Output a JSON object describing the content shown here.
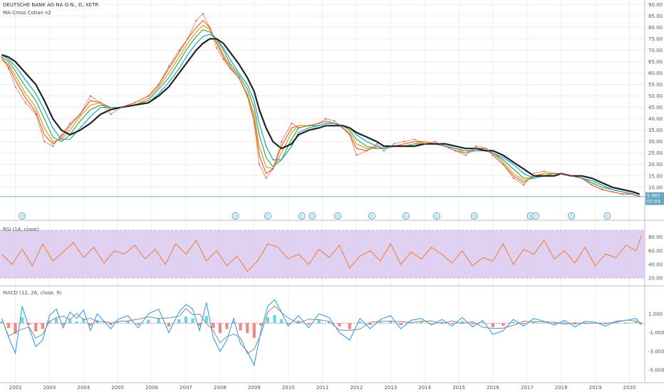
{
  "chart_data": {
    "type": "line",
    "title": "DEUTSCHE BANK AG NA O.N., D, XETR",
    "subtitle": "MA-Cross Coban v2",
    "price_ticks": [
      "90.00",
      "85.00",
      "80.00",
      "75.00",
      "70.00",
      "65.00",
      "60.00",
      "55.00",
      "50.00",
      "45.00",
      "40.00",
      "35.00",
      "30.00",
      "25.00",
      "20.00",
      "15.00",
      "10.00"
    ],
    "price_range": [
      4,
      92
    ],
    "last_price_label": "5.967",
    "last_time_label": "07:04",
    "x_labels": [
      "2002",
      "2003",
      "2004",
      "2005",
      "2006",
      "2007",
      "2008",
      "2009",
      "2010",
      "2011",
      "2012",
      "2013",
      "2014",
      "2015",
      "2016",
      "2017",
      "2018",
      "2019",
      "2020"
    ],
    "x_range": [
      2001.55,
      2020.45
    ],
    "price_series": {
      "name": "close",
      "x": [
        2001.6,
        2001.8,
        2002.0,
        2002.3,
        2002.6,
        2002.85,
        2003.1,
        2003.35,
        2003.6,
        2003.9,
        2004.2,
        2004.5,
        2004.8,
        2005.1,
        2005.5,
        2005.9,
        2006.2,
        2006.5,
        2006.8,
        2007.05,
        2007.3,
        2007.5,
        2007.7,
        2007.9,
        2008.1,
        2008.3,
        2008.55,
        2008.8,
        2009.0,
        2009.15,
        2009.35,
        2009.55,
        2009.8,
        2010.1,
        2010.3,
        2010.6,
        2010.9,
        2011.1,
        2011.35,
        2011.6,
        2011.8,
        2012.0,
        2012.3,
        2012.6,
        2012.8,
        2013.1,
        2013.4,
        2013.7,
        2014.0,
        2014.3,
        2014.6,
        2014.9,
        2015.2,
        2015.5,
        2015.8,
        2016.0,
        2016.3,
        2016.6,
        2016.9,
        2017.2,
        2017.5,
        2017.8,
        2018.0,
        2018.3,
        2018.6,
        2018.9,
        2019.2,
        2019.5,
        2019.8,
        2020.1,
        2020.3
      ],
      "y": [
        67,
        62,
        54,
        47,
        42,
        30,
        28,
        33,
        38,
        42,
        50,
        47,
        42,
        45,
        47,
        50,
        55,
        63,
        70,
        75,
        83,
        86,
        80,
        71,
        66,
        62,
        58,
        50,
        38,
        20,
        14,
        18,
        30,
        38,
        36,
        37,
        38,
        40,
        39,
        36,
        33,
        24,
        26,
        29,
        26,
        29,
        30,
        31,
        29,
        30,
        28,
        26,
        24,
        28,
        27,
        24,
        20,
        14,
        11,
        16,
        17,
        16,
        16,
        15,
        14,
        11,
        9,
        8,
        7,
        7,
        6
      ]
    },
    "ma_series": [
      {
        "color": "#ef6a3a",
        "y": [
          66,
          63,
          57,
          49,
          43,
          33,
          29,
          32,
          37,
          42,
          48,
          47,
          44,
          45,
          47,
          50,
          55,
          62,
          69,
          75,
          80,
          83,
          80,
          73,
          67,
          62,
          58,
          50,
          40,
          24,
          16,
          18,
          28,
          36,
          37,
          37,
          38,
          39,
          38,
          36,
          33,
          27,
          26,
          28,
          27,
          28,
          29,
          30,
          30,
          29,
          28,
          26,
          25,
          27,
          27,
          24,
          20,
          15,
          12,
          15,
          16,
          16,
          16,
          15,
          14,
          11,
          9,
          8,
          7,
          7,
          6
        ]
      },
      {
        "color": "#d4a63a",
        "y": [
          66,
          64,
          59,
          51,
          45,
          36,
          30,
          31,
          35,
          41,
          46,
          47,
          45,
          45,
          46,
          49,
          54,
          60,
          67,
          73,
          78,
          81,
          79,
          74,
          68,
          63,
          58,
          51,
          42,
          28,
          19,
          18,
          25,
          34,
          37,
          37,
          37,
          38,
          38,
          36,
          34,
          29,
          27,
          27,
          27,
          28,
          28,
          29,
          30,
          29,
          28,
          27,
          25,
          26,
          26,
          25,
          21,
          16,
          13,
          14,
          16,
          16,
          16,
          15,
          14,
          12,
          10,
          9,
          8,
          7,
          6
        ]
      },
      {
        "color": "#4caf50",
        "y": [
          67,
          65,
          61,
          54,
          48,
          40,
          32,
          30,
          33,
          39,
          44,
          46,
          45,
          45,
          46,
          48,
          53,
          58,
          65,
          71,
          76,
          79,
          78,
          75,
          70,
          64,
          59,
          53,
          45,
          33,
          23,
          19,
          22,
          31,
          36,
          37,
          37,
          38,
          38,
          37,
          35,
          31,
          28,
          27,
          27,
          28,
          28,
          29,
          29,
          29,
          28,
          27,
          26,
          26,
          26,
          25,
          22,
          18,
          14,
          14,
          15,
          16,
          16,
          15,
          14,
          12,
          10,
          9,
          8,
          7,
          6
        ]
      },
      {
        "color": "#29a3d9",
        "y": [
          68,
          66,
          63,
          57,
          51,
          44,
          36,
          31,
          31,
          36,
          41,
          45,
          45,
          45,
          46,
          47,
          51,
          56,
          62,
          68,
          73,
          76,
          77,
          75,
          71,
          66,
          60,
          55,
          48,
          38,
          28,
          22,
          22,
          28,
          34,
          36,
          37,
          38,
          38,
          37,
          36,
          33,
          30,
          28,
          27,
          28,
          28,
          28,
          29,
          29,
          28,
          27,
          26,
          26,
          26,
          25,
          23,
          20,
          16,
          14,
          15,
          15,
          16,
          15,
          14,
          13,
          11,
          9,
          8,
          7,
          6
        ]
      },
      {
        "color": "#222222",
        "y": [
          68,
          67,
          65,
          60,
          55,
          48,
          40,
          35,
          33,
          35,
          38,
          42,
          44,
          45,
          46,
          47,
          50,
          54,
          60,
          65,
          70,
          73,
          75,
          75,
          73,
          69,
          64,
          58,
          52,
          44,
          36,
          30,
          27,
          29,
          33,
          35,
          36,
          37,
          37,
          37,
          36,
          34,
          32,
          30,
          28,
          28,
          28,
          28,
          29,
          29,
          29,
          28,
          27,
          27,
          26,
          26,
          24,
          21,
          18,
          15,
          15,
          15,
          16,
          15,
          15,
          14,
          12,
          10,
          9,
          8,
          7
        ]
      }
    ],
    "signal_years": [
      2002.2,
      2008.45,
      2009.4,
      2010.4,
      2010.7,
      2011.45,
      2012.45,
      2013.45,
      2014.35,
      2015.45,
      2017.1,
      2017.25,
      2018.3,
      2019.35
    ],
    "signal_label": "0",
    "rsi": {
      "title": "RSI (14, close)",
      "ticks": [
        "80.00",
        "60.00",
        "40.00",
        "20.00"
      ],
      "range": [
        15,
        92
      ],
      "upper_band": 90,
      "lower_band": 20,
      "x": [
        2001.6,
        2001.9,
        2002.2,
        2002.5,
        2002.8,
        2003.1,
        2003.4,
        2003.7,
        2004.0,
        2004.3,
        2004.6,
        2004.9,
        2005.2,
        2005.5,
        2005.8,
        2006.1,
        2006.4,
        2006.7,
        2007.0,
        2007.3,
        2007.6,
        2007.9,
        2008.2,
        2008.5,
        2008.8,
        2009.1,
        2009.4,
        2009.7,
        2010.0,
        2010.3,
        2010.6,
        2010.9,
        2011.2,
        2011.5,
        2011.8,
        2012.1,
        2012.4,
        2012.7,
        2013.0,
        2013.3,
        2013.6,
        2013.9,
        2014.2,
        2014.5,
        2014.8,
        2015.1,
        2015.4,
        2015.7,
        2016.0,
        2016.3,
        2016.6,
        2016.9,
        2017.2,
        2017.5,
        2017.8,
        2018.1,
        2018.4,
        2018.7,
        2019.0,
        2019.3,
        2019.6,
        2019.9,
        2020.2,
        2020.35
      ],
      "y": [
        55,
        40,
        62,
        38,
        70,
        45,
        58,
        72,
        50,
        65,
        42,
        60,
        55,
        68,
        48,
        62,
        40,
        70,
        55,
        75,
        45,
        60,
        38,
        52,
        30,
        45,
        70,
        65,
        48,
        55,
        40,
        62,
        50,
        68,
        35,
        52,
        60,
        45,
        70,
        40,
        58,
        48,
        65,
        55,
        42,
        60,
        38,
        50,
        45,
        70,
        40,
        62,
        55,
        75,
        48,
        60,
        42,
        65,
        38,
        55,
        50,
        68,
        60,
        82
      ]
    },
    "macd": {
      "title": "MACD (12, 26, close, 9)",
      "ticks": [
        "1.000",
        "-1.000",
        "-3.000",
        "-5.000"
      ],
      "range": [
        -6.2,
        3.3
      ],
      "x": [
        2001.6,
        2001.8,
        2002.0,
        2002.2,
        2002.4,
        2002.6,
        2002.8,
        2003.0,
        2003.2,
        2003.4,
        2003.6,
        2003.8,
        2004.0,
        2004.2,
        2004.4,
        2004.6,
        2004.8,
        2005.0,
        2005.3,
        2005.6,
        2005.9,
        2006.2,
        2006.5,
        2006.8,
        2007.0,
        2007.2,
        2007.4,
        2007.6,
        2007.8,
        2008.0,
        2008.2,
        2008.4,
        2008.6,
        2008.8,
        2009.0,
        2009.2,
        2009.4,
        2009.6,
        2009.8,
        2010.0,
        2010.3,
        2010.6,
        2010.9,
        2011.2,
        2011.5,
        2011.8,
        2012.1,
        2012.4,
        2012.7,
        2013.0,
        2013.3,
        2013.6,
        2013.9,
        2014.2,
        2014.5,
        2014.8,
        2015.1,
        2015.4,
        2015.7,
        2016.0,
        2016.3,
        2016.6,
        2016.9,
        2017.2,
        2017.5,
        2017.8,
        2018.1,
        2018.4,
        2018.7,
        2019.0,
        2019.3,
        2019.6,
        2019.9,
        2020.2,
        2020.35
      ],
      "y": [
        0.5,
        -1.5,
        -3.2,
        1.8,
        -0.5,
        -2.5,
        -1.8,
        0.8,
        1.5,
        -0.5,
        1.2,
        0.5,
        1.4,
        -0.8,
        1.0,
        0.2,
        -0.6,
        0.4,
        0.8,
        -0.5,
        1.0,
        1.5,
        -1.0,
        1.2,
        2.0,
        1.5,
        -0.8,
        2.2,
        -1.5,
        -3.0,
        -1.8,
        0.5,
        -2.2,
        -3.0,
        -4.5,
        -0.8,
        1.8,
        2.5,
        1.2,
        -0.3,
        0.8,
        -0.5,
        1.0,
        0.6,
        -1.0,
        -1.8,
        0.5,
        -0.6,
        0.4,
        0.8,
        -0.6,
        0.3,
        0.5,
        -0.2,
        0.4,
        -0.3,
        0.6,
        -0.4,
        0.3,
        -1.2,
        -0.8,
        0.4,
        -0.3,
        0.5,
        0.2,
        -0.2,
        0.3,
        -0.4,
        0.2,
        0.1,
        -0.3,
        0.2,
        0.3,
        0.5,
        -0.2
      ]
    }
  }
}
